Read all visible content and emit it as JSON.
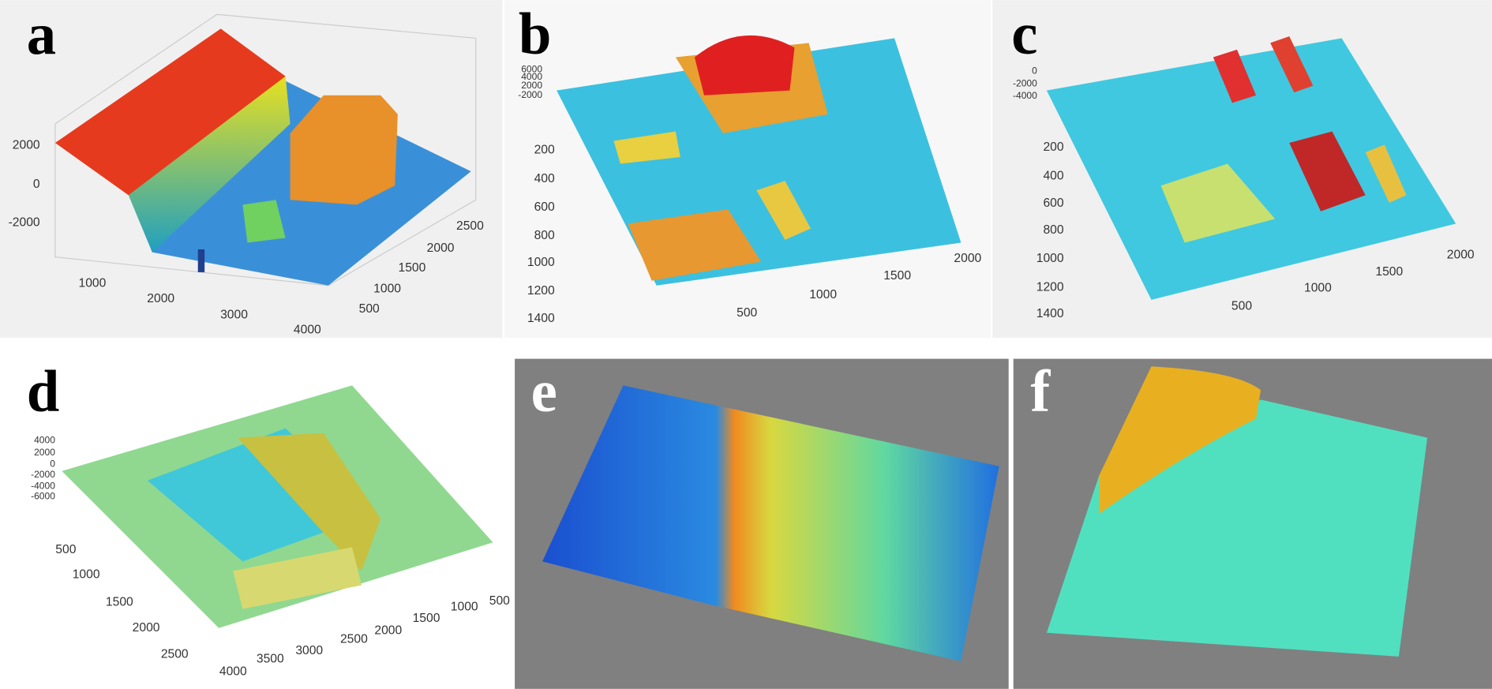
{
  "panels": [
    {
      "label": "a",
      "z_ticks": [
        "2000",
        "0",
        "-2000"
      ],
      "x_ticks": [
        "1000",
        "2000",
        "3000",
        "4000"
      ],
      "y_ticks": [
        "500",
        "1000",
        "1500",
        "2000",
        "2500"
      ]
    },
    {
      "label": "b",
      "z_ticks": [
        "6000",
        "4000",
        "2000",
        "-2000"
      ],
      "y_ticks": [
        "200",
        "400",
        "600",
        "800",
        "1000",
        "1200",
        "1400"
      ],
      "x_ticks": [
        "500",
        "1000",
        "1500",
        "2000"
      ]
    },
    {
      "label": "c",
      "z_ticks": [
        "0",
        "-2000",
        "-4000"
      ],
      "y_ticks": [
        "200",
        "400",
        "600",
        "800",
        "1000",
        "1200",
        "1400"
      ],
      "x_ticks": [
        "500",
        "1000",
        "1500",
        "2000"
      ]
    },
    {
      "label": "d",
      "z_ticks": [
        "4000",
        "2000",
        "0",
        "-2000",
        "-4000",
        "-6000"
      ],
      "y_ticks": [
        "500",
        "1000",
        "1500",
        "2000",
        "2500"
      ],
      "x_ticks": [
        "4000",
        "3500",
        "3000",
        "2500",
        "2000",
        "1500",
        "1000",
        "500"
      ]
    },
    {
      "label": "e"
    },
    {
      "label": "f"
    }
  ]
}
